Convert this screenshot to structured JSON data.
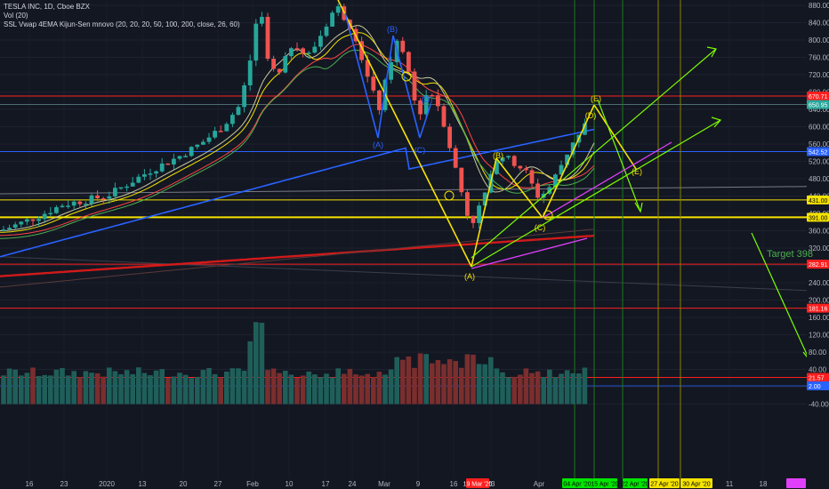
{
  "legend": {
    "symbol": "TESLA INC, 1D, Cboe BZX",
    "vol": "Vol (20)",
    "indicator": "SSL Vwap 4EMA Kijun-Sen mnovo (20, 20, 20, 50, 100, 200, close, 26, 60)"
  },
  "annotation_text": "Target 398",
  "colors": {
    "background": "#131722",
    "bull": "#26a69a",
    "bear": "#ef5350",
    "yellow": "#f5e300",
    "green": "#4caf50",
    "red": "#ff1f1f",
    "blue": "#2962ff",
    "magenta": "#e040fb"
  },
  "chart_data": {
    "type": "candlestick",
    "y_axis_ticks": [
      "880.00",
      "840.00",
      "800.00",
      "760.00",
      "720.00",
      "680.00",
      "640.00",
      "600.00",
      "560.00",
      "520.00",
      "480.00",
      "440.00",
      "400.00",
      "360.00",
      "320.00",
      "280.00",
      "240.00",
      "200.00",
      "160.00",
      "120.00",
      "80.00",
      "40.00",
      "0.00",
      "-40.00"
    ],
    "x_axis_ticks": [
      "16",
      "23",
      "2020",
      "13",
      "20",
      "27",
      "Feb",
      "10",
      "17",
      "24",
      "Mar",
      "9",
      "16",
      "23",
      "Apr",
      "11",
      "18"
    ],
    "price_tags": [
      {
        "value": "670.71",
        "color": "#ff1f1f"
      },
      {
        "value": "650.95",
        "color": "#26a69a"
      },
      {
        "value": "542.52",
        "color": "#2962ff"
      },
      {
        "value": "431.00",
        "color": "#f5e300"
      },
      {
        "value": "391.00",
        "color": "#f5e300"
      },
      {
        "value": "282.91",
        "color": "#ff1f1f"
      },
      {
        "value": "181.16",
        "color": "#ff1f1f"
      },
      {
        "value": "21.57",
        "color": "#ff1f1f"
      },
      {
        "value": "2.00",
        "color": "#2962ff"
      }
    ],
    "date_tags": [
      {
        "value": "19 Mar '20",
        "color": "#ff1f1f"
      },
      {
        "value": "04 Apr '20",
        "color": "#00e600"
      },
      {
        "value": "15 Apr '20",
        "color": "#00e600"
      },
      {
        "value": "22 Apr '20",
        "color": "#00e600"
      },
      {
        "value": "27 Apr '20",
        "color": "#f5e300"
      },
      {
        "value": "30 Apr '20",
        "color": "#f5e300"
      }
    ],
    "wave_labels": [
      "(A)",
      "(B)",
      "(C)",
      "(D)",
      "(A)",
      "(B)",
      "(C)",
      "(D)",
      "(E)",
      "(E)"
    ]
  }
}
